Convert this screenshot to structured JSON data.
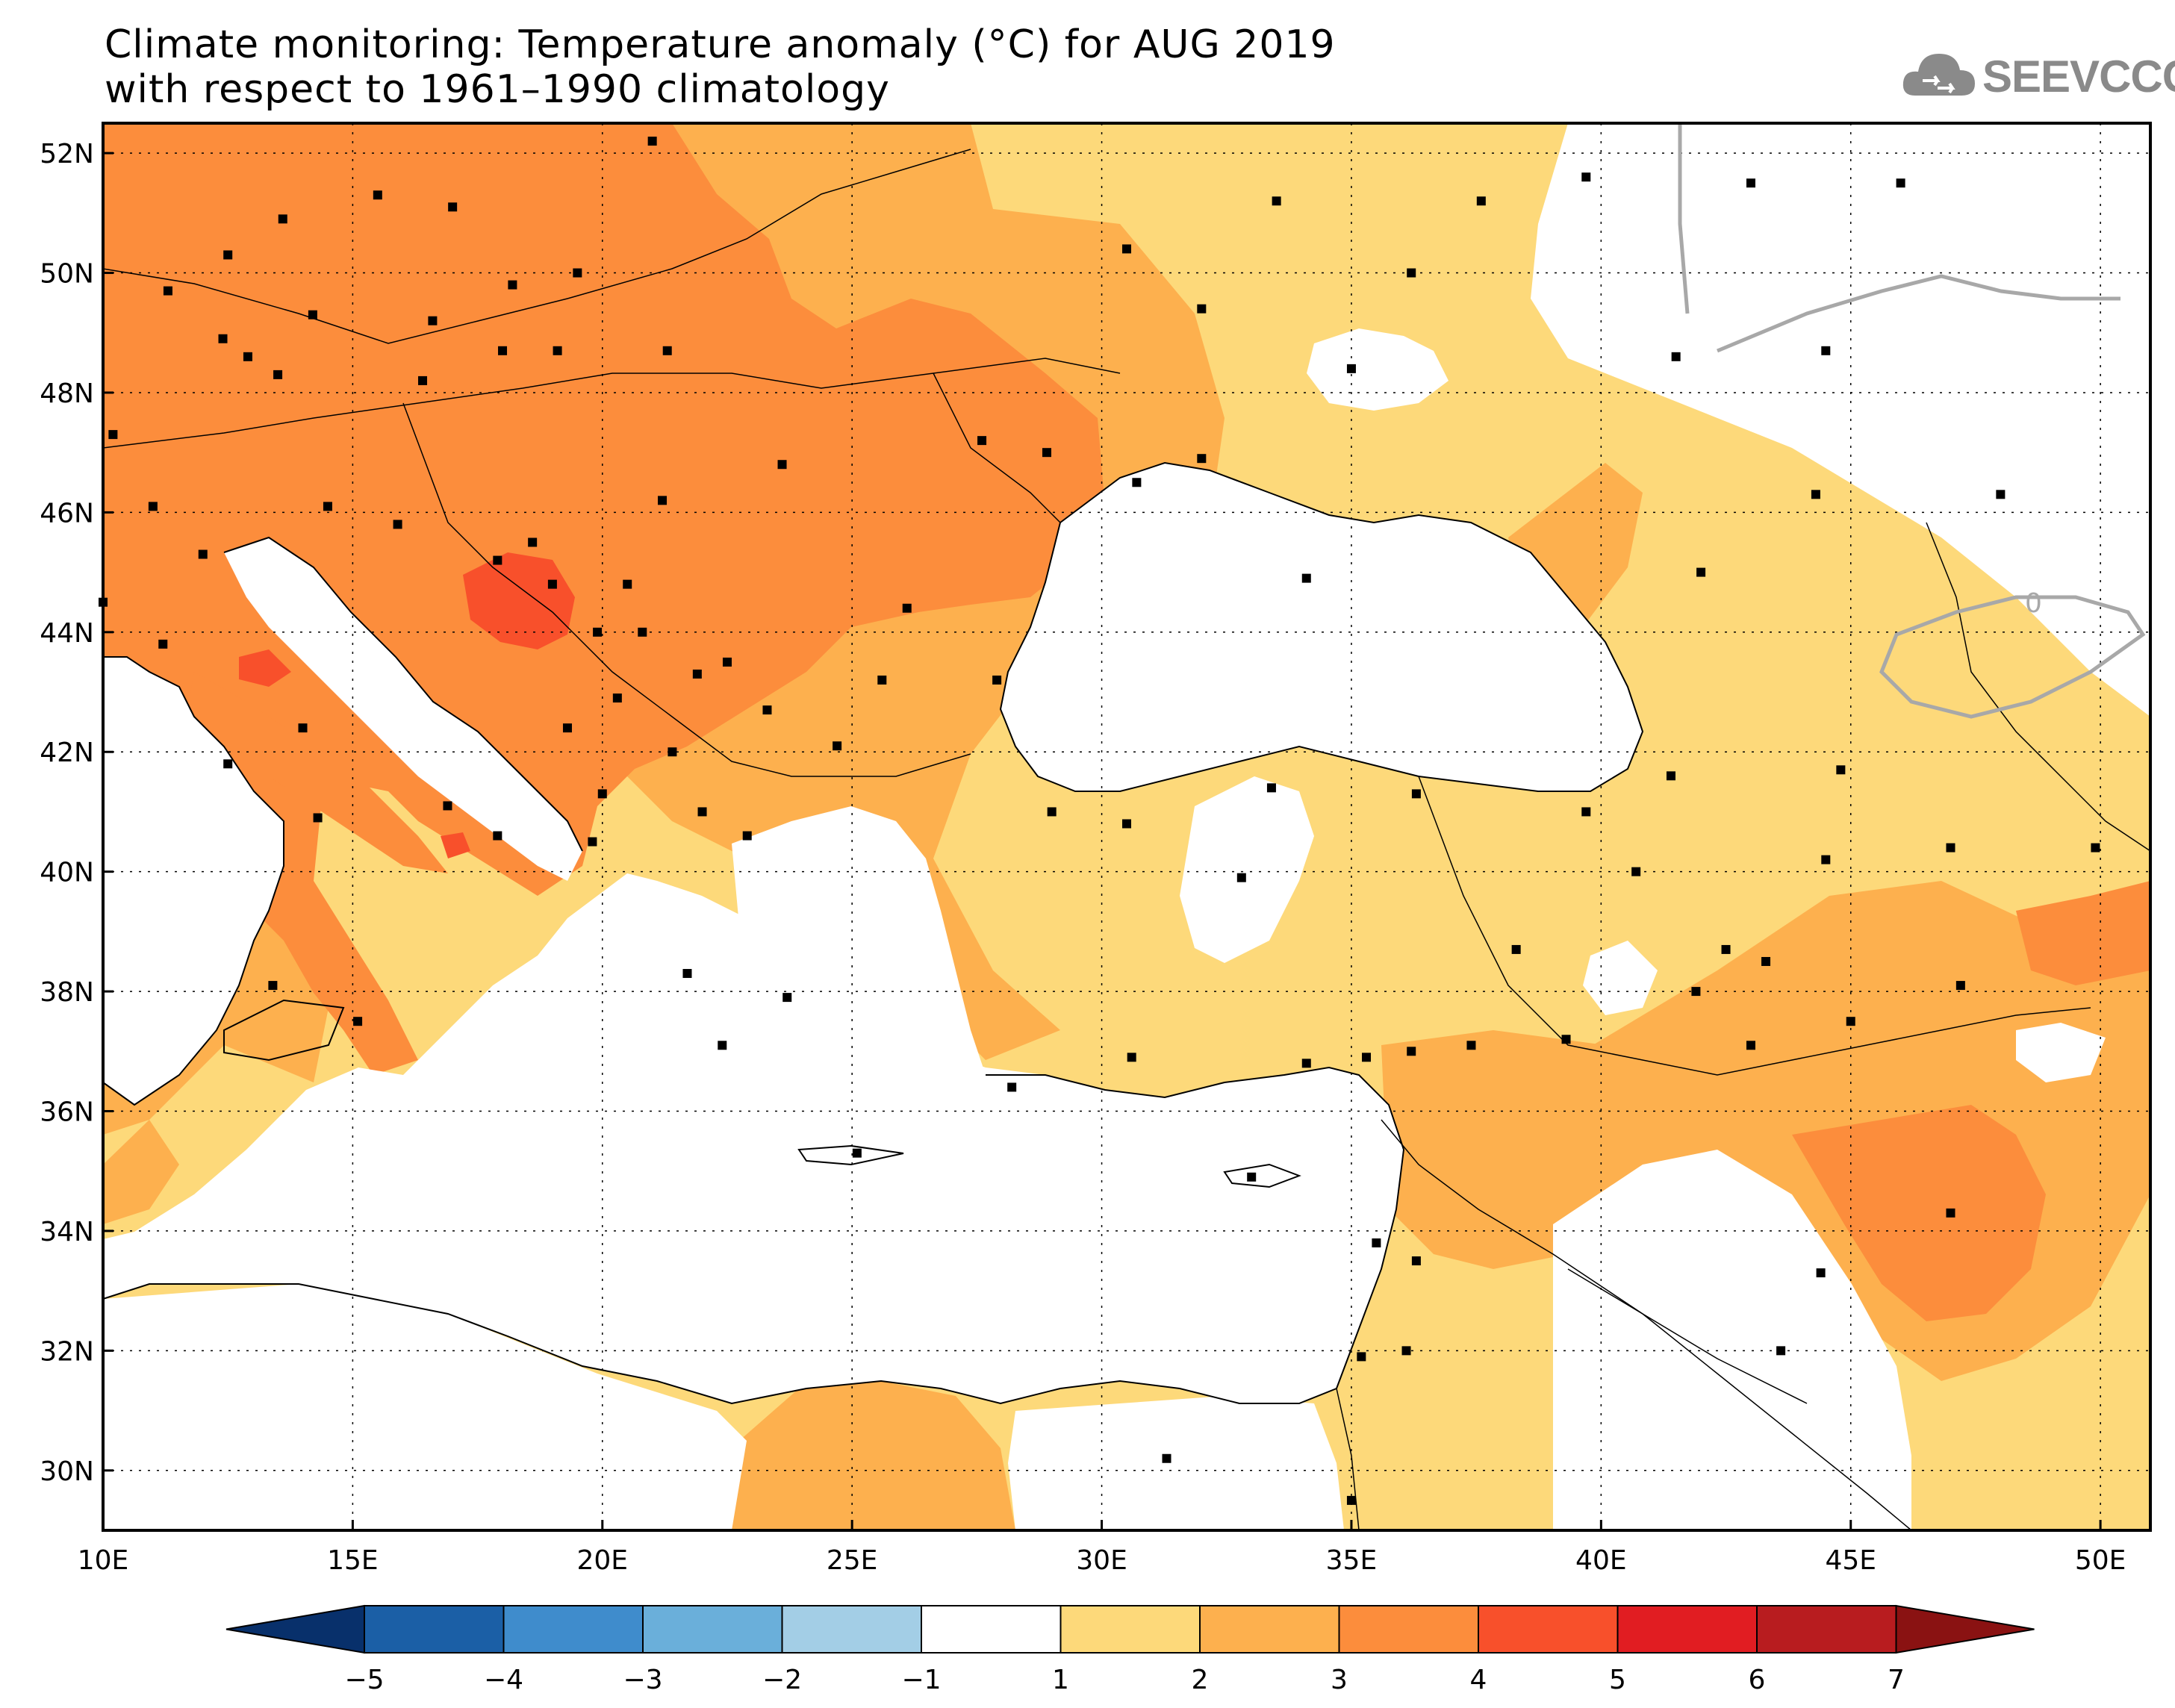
{
  "title": {
    "line1": "Climate monitoring: Temperature anomaly (°C) for AUG 2019",
    "line2": "with respect to 1961–1990 climatology"
  },
  "logo": {
    "text": "SEEVCCC",
    "icon": "cloud-icon"
  },
  "map": {
    "lon_range": [
      10,
      51
    ],
    "lat_range": [
      29,
      52.5
    ],
    "lat_ticks": [
      {
        "value": 52,
        "label": "52N"
      },
      {
        "value": 50,
        "label": "50N"
      },
      {
        "value": 48,
        "label": "48N"
      },
      {
        "value": 46,
        "label": "46N"
      },
      {
        "value": 44,
        "label": "44N"
      },
      {
        "value": 42,
        "label": "42N"
      },
      {
        "value": 40,
        "label": "40N"
      },
      {
        "value": 38,
        "label": "38N"
      },
      {
        "value": 36,
        "label": "36N"
      },
      {
        "value": 34,
        "label": "34N"
      },
      {
        "value": 32,
        "label": "32N"
      },
      {
        "value": 30,
        "label": "30N"
      }
    ],
    "lon_ticks": [
      {
        "value": 10,
        "label": "10E"
      },
      {
        "value": 15,
        "label": "15E"
      },
      {
        "value": 20,
        "label": "20E"
      },
      {
        "value": 25,
        "label": "25E"
      },
      {
        "value": 30,
        "label": "30E"
      },
      {
        "value": 35,
        "label": "35E"
      },
      {
        "value": 40,
        "label": "40E"
      },
      {
        "value": 45,
        "label": "45E"
      },
      {
        "value": 50,
        "label": "50E"
      }
    ],
    "contour_label": "0",
    "colors": {
      "a1_2": "#fdd97a",
      "a2_3": "#fdb04e",
      "a3_4": "#fc8d3c",
      "a4_5": "#f8502b",
      "contour": "#a8a8a8",
      "station": "#000000"
    },
    "stations": [
      [
        11.3,
        49.7
      ],
      [
        12.5,
        50.3
      ],
      [
        13.6,
        50.9
      ],
      [
        14.2,
        49.3
      ],
      [
        16.6,
        49.2
      ],
      [
        18.2,
        49.8
      ],
      [
        19.5,
        50.0
      ],
      [
        21.0,
        52.2
      ],
      [
        17.0,
        51.1
      ],
      [
        15.5,
        51.3
      ],
      [
        12.4,
        48.9
      ],
      [
        13.5,
        48.3
      ],
      [
        16.4,
        48.2
      ],
      [
        18.0,
        48.7
      ],
      [
        19.1,
        48.7
      ],
      [
        21.3,
        48.7
      ],
      [
        14.5,
        46.1
      ],
      [
        15.9,
        45.8
      ],
      [
        17.9,
        45.2
      ],
      [
        19.0,
        44.8
      ],
      [
        20.5,
        44.8
      ],
      [
        20.8,
        44.0
      ],
      [
        21.9,
        43.3
      ],
      [
        20.3,
        42.9
      ],
      [
        19.3,
        42.4
      ],
      [
        21.4,
        42.0
      ],
      [
        22.0,
        41.0
      ],
      [
        23.3,
        42.7
      ],
      [
        24.7,
        42.1
      ],
      [
        25.6,
        43.2
      ],
      [
        27.9,
        43.2
      ],
      [
        26.1,
        44.4
      ],
      [
        23.6,
        46.8
      ],
      [
        21.2,
        46.2
      ],
      [
        27.6,
        47.2
      ],
      [
        28.9,
        47.0
      ],
      [
        30.7,
        46.5
      ],
      [
        32.0,
        46.9
      ],
      [
        34.1,
        44.9
      ],
      [
        30.5,
        50.4
      ],
      [
        32.0,
        49.4
      ],
      [
        35.0,
        48.4
      ],
      [
        36.2,
        50.0
      ],
      [
        33.5,
        51.2
      ],
      [
        37.6,
        51.2
      ],
      [
        39.7,
        51.6
      ],
      [
        41.5,
        48.6
      ],
      [
        43.0,
        51.5
      ],
      [
        44.5,
        48.7
      ],
      [
        46.0,
        51.5
      ],
      [
        48.0,
        46.3
      ],
      [
        44.3,
        46.3
      ],
      [
        42.0,
        45.0
      ],
      [
        41.4,
        41.6
      ],
      [
        44.8,
        41.7
      ],
      [
        44.5,
        40.2
      ],
      [
        47.0,
        40.4
      ],
      [
        49.9,
        40.4
      ],
      [
        47.2,
        38.1
      ],
      [
        45.0,
        37.5
      ],
      [
        43.3,
        38.5
      ],
      [
        41.9,
        38.0
      ],
      [
        39.3,
        37.2
      ],
      [
        38.3,
        38.7
      ],
      [
        36.2,
        37.0
      ],
      [
        35.3,
        36.9
      ],
      [
        32.8,
        39.9
      ],
      [
        29.0,
        41.0
      ],
      [
        30.5,
        40.8
      ],
      [
        33.4,
        41.4
      ],
      [
        36.3,
        41.3
      ],
      [
        39.7,
        41.0
      ],
      [
        40.7,
        40.0
      ],
      [
        42.5,
        38.7
      ],
      [
        43.0,
        37.1
      ],
      [
        37.4,
        37.1
      ],
      [
        34.1,
        36.8
      ],
      [
        30.6,
        36.9
      ],
      [
        28.2,
        36.4
      ],
      [
        33.0,
        34.9
      ],
      [
        35.5,
        33.8
      ],
      [
        36.3,
        33.5
      ],
      [
        35.2,
        31.9
      ],
      [
        36.1,
        32.0
      ],
      [
        31.3,
        30.2
      ],
      [
        35.0,
        29.5
      ],
      [
        47.0,
        34.3
      ],
      [
        44.4,
        33.3
      ],
      [
        43.6,
        32.0
      ],
      [
        25.1,
        35.3
      ],
      [
        23.7,
        37.9
      ],
      [
        22.4,
        37.1
      ],
      [
        21.7,
        38.3
      ],
      [
        22.9,
        40.6
      ],
      [
        20.0,
        41.3
      ],
      [
        19.8,
        40.5
      ],
      [
        16.9,
        41.1
      ],
      [
        17.9,
        40.6
      ],
      [
        14.3,
        40.9
      ],
      [
        15.1,
        37.5
      ],
      [
        13.4,
        38.1
      ],
      [
        14.0,
        42.4
      ],
      [
        12.5,
        41.8
      ],
      [
        11.2,
        43.8
      ],
      [
        10.0,
        44.5
      ],
      [
        12.0,
        45.3
      ],
      [
        11.0,
        46.1
      ],
      [
        10.2,
        47.3
      ],
      [
        12.9,
        48.6
      ],
      [
        18.6,
        45.5
      ],
      [
        19.9,
        44.0
      ],
      [
        22.5,
        43.5
      ]
    ]
  },
  "colorbar": {
    "segments": [
      {
        "color": "#1b5fa6"
      },
      {
        "color": "#3f8ccc"
      },
      {
        "color": "#6aafda"
      },
      {
        "color": "#a3cee6"
      },
      {
        "color": "#ffffff"
      },
      {
        "color": "#fdd97a"
      },
      {
        "color": "#fdb04e"
      },
      {
        "color": "#fc8d3c"
      },
      {
        "color": "#f8502b"
      },
      {
        "color": "#e11d22"
      },
      {
        "color": "#b81c1f"
      }
    ],
    "low_end_color": "#08306b",
    "high_end_color": "#8a1212",
    "labels": [
      "−5",
      "−4",
      "−3",
      "−2",
      "−1",
      "1",
      "2",
      "3",
      "4",
      "5",
      "6",
      "7"
    ]
  }
}
